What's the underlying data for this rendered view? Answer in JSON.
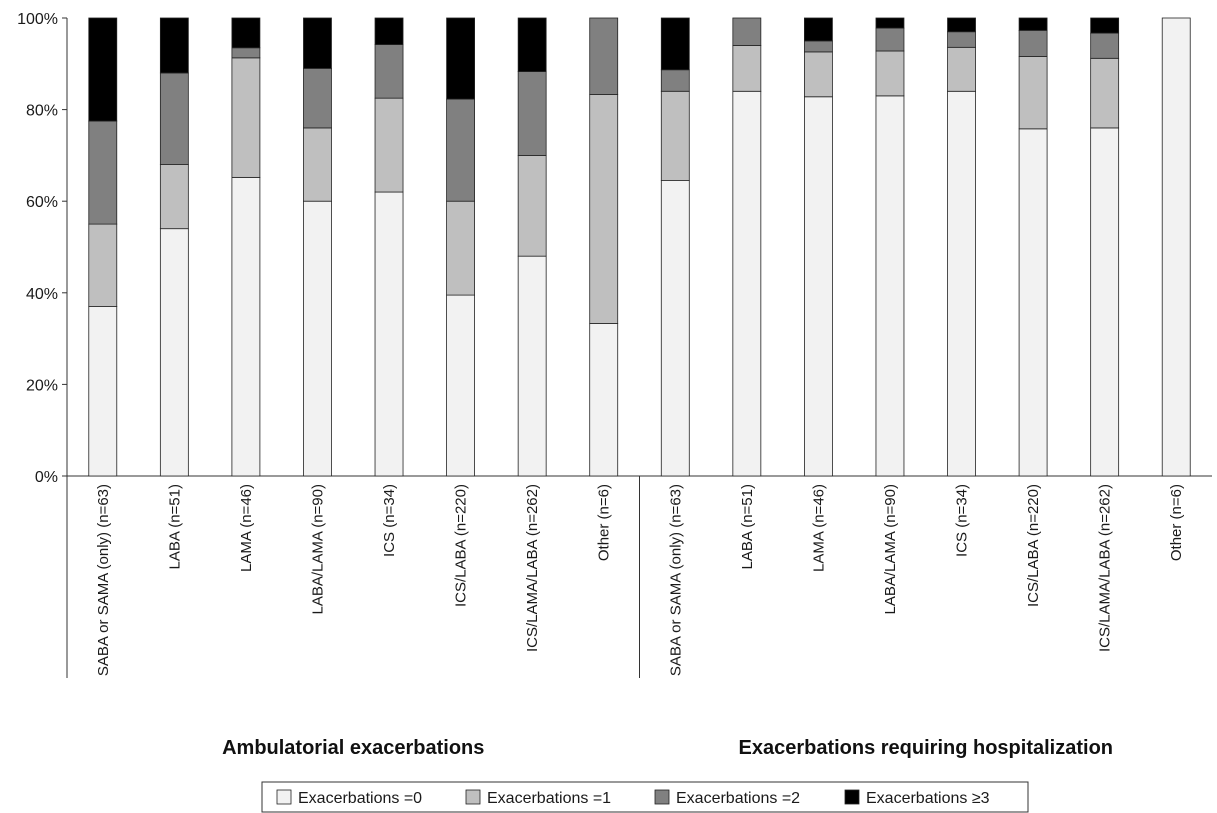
{
  "chart_data": {
    "type": "bar",
    "stacked": true,
    "normalized_percent": true,
    "ylim": [
      0,
      100
    ],
    "yticks": [
      "0%",
      "20%",
      "40%",
      "60%",
      "80%",
      "100%"
    ],
    "ytick_values": [
      0,
      20,
      40,
      60,
      80,
      100
    ],
    "grid": false,
    "legend_position": "bottom-center",
    "groups": [
      {
        "label": "Ambulatorial exacerbations",
        "categories": [
          "SABA or SAMA (only) (n=63)",
          "LABA (n=51)",
          "LAMA (n=46)",
          "LABA/LAMA (n=90)",
          "ICS (n=34)",
          "ICS/LABA (n=220)",
          "ICS/LAMA/LABA (n=262)",
          "Other (n=6)"
        ],
        "series": [
          {
            "name": "Exacerbations =0",
            "color": "#f2f2f2",
            "values": [
              37,
              54,
              65.2,
              60,
              62,
              39.5,
              48,
              33.3
            ]
          },
          {
            "name": "Exacerbations =1",
            "color": "#bfbfbf",
            "values": [
              18,
              14,
              26.1,
              16,
              20.5,
              20.5,
              22,
              50
            ]
          },
          {
            "name": "Exacerbations =2",
            "color": "#808080",
            "values": [
              22.5,
              20,
              2.2,
              13,
              11.7,
              22.3,
              18.3,
              16.7
            ]
          },
          {
            "name": "Exacerbations ≥3",
            "color": "#000000",
            "values": [
              22.5,
              12,
              6.5,
              11,
              5.8,
              17.7,
              11.7,
              0
            ]
          }
        ]
      },
      {
        "label": "Exacerbations requiring hospitalization",
        "categories": [
          "SABA or SAMA (only) (n=63)",
          "LABA (n=51)",
          "LAMA (n=46)",
          "LABA/LAMA (n=90)",
          "ICS (n=34)",
          "ICS/LABA (n=220)",
          "ICS/LAMA/LABA (n=262)",
          "Other (n=6)"
        ],
        "series": [
          {
            "name": "Exacerbations =0",
            "color": "#f2f2f2",
            "values": [
              64.5,
              84,
              82.8,
              83,
              84,
              75.8,
              76,
              100
            ]
          },
          {
            "name": "Exacerbations =1",
            "color": "#bfbfbf",
            "values": [
              19.5,
              10,
              9.8,
              9.8,
              9.6,
              15.8,
              15.2,
              0
            ]
          },
          {
            "name": "Exacerbations =2",
            "color": "#808080",
            "values": [
              4.7,
              6,
              2.4,
              5,
              3.4,
              5.7,
              5.5,
              0
            ]
          },
          {
            "name": "Exacerbations ≥3",
            "color": "#000000",
            "values": [
              11.3,
              0,
              5,
              2.2,
              3,
              2.7,
              3.3,
              0
            ]
          }
        ]
      }
    ],
    "legend": [
      "Exacerbations =0",
      "Exacerbations =1",
      "Exacerbations =2",
      "Exacerbations ≥3"
    ]
  }
}
